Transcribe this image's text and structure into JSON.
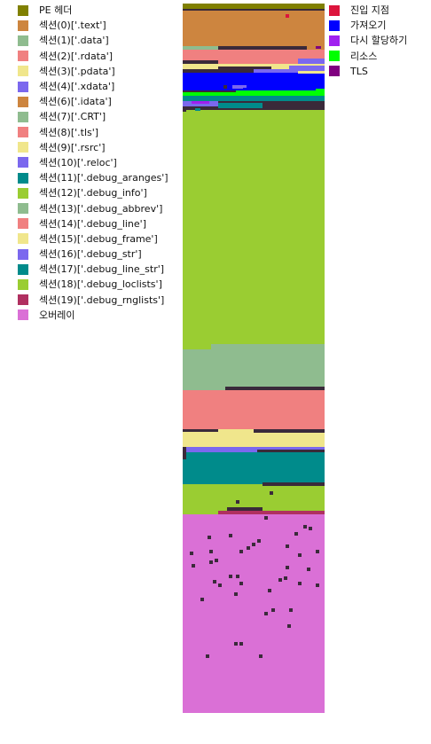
{
  "legend_left": [
    {
      "label": "PE 헤더",
      "color": "#808000"
    },
    {
      "label": "섹션(0)['.text']",
      "color": "#cd853f"
    },
    {
      "label": "섹션(1)['.data']",
      "color": "#8fbc8f"
    },
    {
      "label": "섹션(2)['.rdata']",
      "color": "#f08080"
    },
    {
      "label": "섹션(3)['.pdata']",
      "color": "#f0e68c"
    },
    {
      "label": "섹션(4)['.xdata']",
      "color": "#7b68ee"
    },
    {
      "label": "섹션(6)['.idata']",
      "color": "#cd853f"
    },
    {
      "label": "섹션(7)['.CRT']",
      "color": "#8fbc8f"
    },
    {
      "label": "섹션(8)['.tls']",
      "color": "#f08080"
    },
    {
      "label": "섹션(9)['.rsrc']",
      "color": "#f0e68c"
    },
    {
      "label": "섹션(10)['.reloc']",
      "color": "#7b68ee"
    },
    {
      "label": "섹션(11)['.debug_aranges']",
      "color": "#008b8b"
    },
    {
      "label": "섹션(12)['.debug_info']",
      "color": "#9acd32"
    },
    {
      "label": "섹션(13)['.debug_abbrev']",
      "color": "#8fbc8f"
    },
    {
      "label": "섹션(14)['.debug_line']",
      "color": "#f08080"
    },
    {
      "label": "섹션(15)['.debug_frame']",
      "color": "#f0e68c"
    },
    {
      "label": "섹션(16)['.debug_str']",
      "color": "#7b68ee"
    },
    {
      "label": "섹션(17)['.debug_line_str']",
      "color": "#008b8b"
    },
    {
      "label": "섹션(18)['.debug_loclists']",
      "color": "#9acd32"
    },
    {
      "label": "섹션(19)['.debug_rnglists']",
      "color": "#b03060"
    },
    {
      "label": "오버레이",
      "color": "#da70d6"
    }
  ],
  "legend_right": [
    {
      "label": "진입 지점",
      "color": "#dc143c"
    },
    {
      "label": "가져오기",
      "color": "#0000ff"
    },
    {
      "label": "다시 할당하기",
      "color": "#a020f0"
    },
    {
      "label": "리소스",
      "color": "#00ff00"
    },
    {
      "label": "TLS",
      "color": "#800080"
    }
  ],
  "colors": {
    "header": "#808000",
    "text": "#cd853f",
    "data": "#8fbc8f",
    "rdata": "#f08080",
    "pdata": "#f0e68c",
    "xdata": "#7b68ee",
    "imports": "#0000ff",
    "resources": "#00ff00",
    "teal": "#008b8b",
    "green": "#9acd32",
    "rnglists": "#b03060",
    "overlay": "#da70d6",
    "entry": "#dc143c",
    "dark": "#3a2a3a",
    "tls": "#800080",
    "reloc_mark": "#a020f0"
  }
}
